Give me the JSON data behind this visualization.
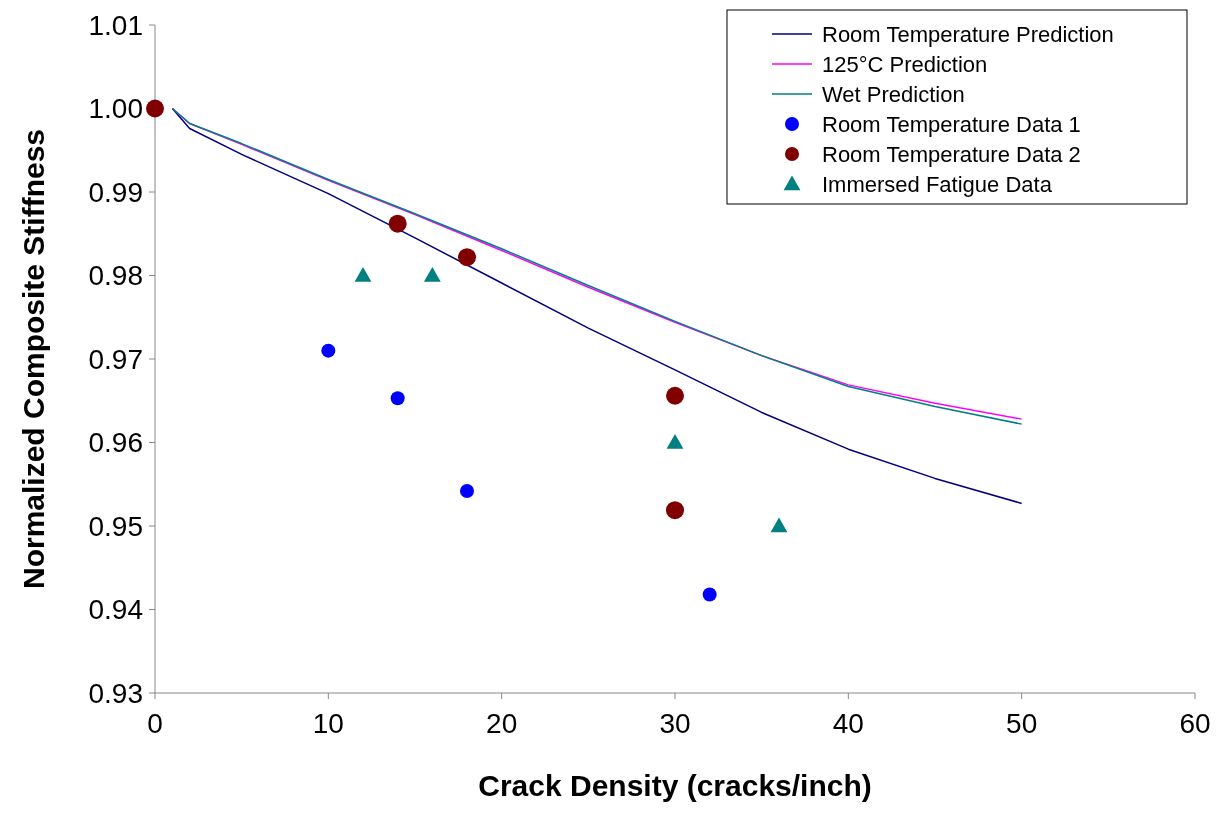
{
  "chart_data": {
    "type": "line",
    "xlabel": "Crack Density (cracks/inch)",
    "ylabel": "Normalized Composite Stiffness",
    "xlim": [
      0,
      60
    ],
    "xticks": [
      0,
      10,
      20,
      30,
      40,
      50,
      60
    ],
    "ylim": [
      0.93,
      1.01
    ],
    "yticks": [
      {
        "value": 0.93,
        "label": "0.93"
      },
      {
        "value": 0.94,
        "label": "0.94"
      },
      {
        "value": 0.95,
        "label": "0.95"
      },
      {
        "value": 0.96,
        "label": "0.96"
      },
      {
        "value": 0.97,
        "label": "0.97"
      },
      {
        "value": 0.98,
        "label": "0.98"
      },
      {
        "value": 0.99,
        "label": "0.99"
      },
      {
        "value": 1.0,
        "label": "1.00"
      },
      {
        "value": 1.01,
        "label": "1.01"
      }
    ],
    "grid": false,
    "legend": "top right",
    "series": [
      {
        "name": "Room Temperature Prediction",
        "type": "line",
        "marker": "none",
        "color": "#000080",
        "x": [
          1,
          2,
          5,
          10,
          15,
          20,
          25,
          30,
          35,
          40,
          45,
          50
        ],
        "values": [
          1.0,
          0.9976,
          0.9945,
          0.9898,
          0.9845,
          0.9791,
          0.9737,
          0.9687,
          0.9636,
          0.9592,
          0.9557,
          0.9527
        ]
      },
      {
        "name": "125°C Prediction",
        "type": "line",
        "marker": "none",
        "color": "#ff00ff",
        "x": [
          1,
          2,
          5,
          10,
          15,
          20,
          25,
          30,
          35,
          40,
          45,
          50
        ],
        "values": [
          1.0,
          0.9982,
          0.9957,
          0.9914,
          0.9873,
          0.983,
          0.9786,
          0.9744,
          0.9704,
          0.9669,
          0.9647,
          0.9628
        ]
      },
      {
        "name": "Wet Prediction",
        "type": "line",
        "marker": "none",
        "color": "#008080",
        "x": [
          1,
          2,
          5,
          10,
          15,
          20,
          25,
          30,
          35,
          40,
          45,
          50
        ],
        "values": [
          1.0,
          0.9982,
          0.9958,
          0.9915,
          0.9874,
          0.9832,
          0.9788,
          0.9745,
          0.9704,
          0.9667,
          0.9643,
          0.9622
        ]
      },
      {
        "name": "Room Temperature Data 1",
        "type": "scatter",
        "marker": "circle",
        "color": "#0000ff",
        "x": [
          10,
          14,
          18,
          32
        ],
        "values": [
          0.971,
          0.9653,
          0.9542,
          0.9418
        ]
      },
      {
        "name": "Room Temperature Data 2",
        "type": "scatter",
        "marker": "circle",
        "color": "#800000",
        "x": [
          0,
          14,
          18,
          30,
          30
        ],
        "values": [
          1.0,
          0.9862,
          0.9822,
          0.9656,
          0.9519
        ]
      },
      {
        "name": "Immersed Fatigue Data",
        "type": "scatter",
        "marker": "triangle",
        "color": "#008080",
        "x": [
          12,
          16,
          30,
          36
        ],
        "values": [
          0.98,
          0.98,
          0.96,
          0.95
        ]
      }
    ]
  }
}
